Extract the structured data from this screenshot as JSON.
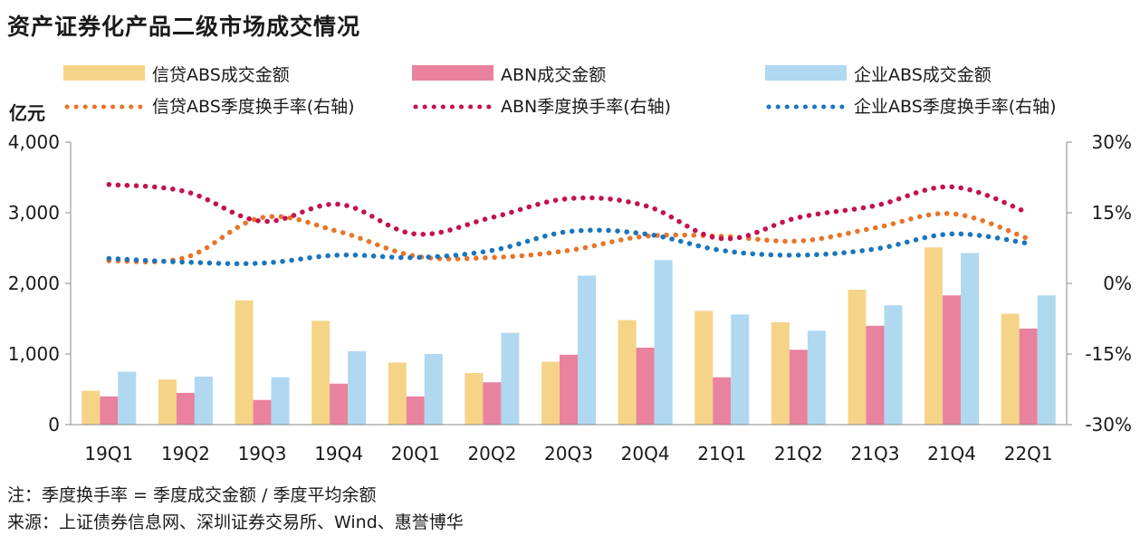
{
  "title": "资产证券化产品二级市场成交情况",
  "notes": {
    "formula": "注：季度换手率 = 季度成交金额 / 季度平均余额",
    "source": "来源：上证债券信息网、深圳证券交易所、Wind、惠誉博华"
  },
  "chart_data": {
    "type": "bar",
    "categories": [
      "19Q1",
      "19Q2",
      "19Q3",
      "19Q4",
      "20Q1",
      "20Q2",
      "20Q3",
      "20Q4",
      "21Q1",
      "21Q2",
      "21Q3",
      "21Q4",
      "22Q1"
    ],
    "left_axis": {
      "unit": "亿元",
      "min": 0,
      "max": 4000,
      "ticks": [
        "0",
        "1,000",
        "2,000",
        "3,000",
        "4,000"
      ]
    },
    "right_axis": {
      "min": -30,
      "max": 30,
      "ticks": [
        "-30%",
        "-15%",
        "0%",
        "15%",
        "30%"
      ]
    },
    "bar_series": [
      {
        "name": "信贷ABS成交金额",
        "color": "#F5D488",
        "values": [
          480,
          640,
          1760,
          1470,
          880,
          730,
          890,
          1480,
          1610,
          1450,
          1910,
          2510,
          1570
        ]
      },
      {
        "name": "ABN成交金额",
        "color": "#E8829E",
        "values": [
          400,
          450,
          350,
          580,
          400,
          600,
          990,
          1090,
          670,
          1060,
          1400,
          1830,
          1360
        ]
      },
      {
        "name": "企业ABS成交金额",
        "color": "#B0D8F0",
        "values": [
          750,
          680,
          670,
          1040,
          1000,
          1300,
          2110,
          2330,
          1560,
          1330,
          1690,
          2430,
          1830
        ]
      }
    ],
    "line_series": [
      {
        "name": "信贷ABS季度换手率(右轴)",
        "color": "#E8742A",
        "values": [
          4.8,
          5.5,
          14.0,
          11.0,
          5.8,
          5.5,
          7.0,
          10.0,
          10.0,
          9.0,
          11.8,
          14.8,
          9.5
        ]
      },
      {
        "name": "ABN季度换手率(右轴)",
        "color": "#C4114F",
        "values": [
          21.0,
          19.5,
          13.2,
          16.8,
          10.5,
          14.0,
          18.0,
          16.5,
          9.5,
          14.0,
          16.5,
          20.5,
          15.0
        ]
      },
      {
        "name": "企业ABS季度换手率(右轴)",
        "color": "#1B75BC",
        "values": [
          5.3,
          4.5,
          4.3,
          6.0,
          5.5,
          7.0,
          11.0,
          10.5,
          7.0,
          6.0,
          7.3,
          10.5,
          8.5
        ]
      }
    ],
    "legend_position": "top",
    "grid": false
  }
}
